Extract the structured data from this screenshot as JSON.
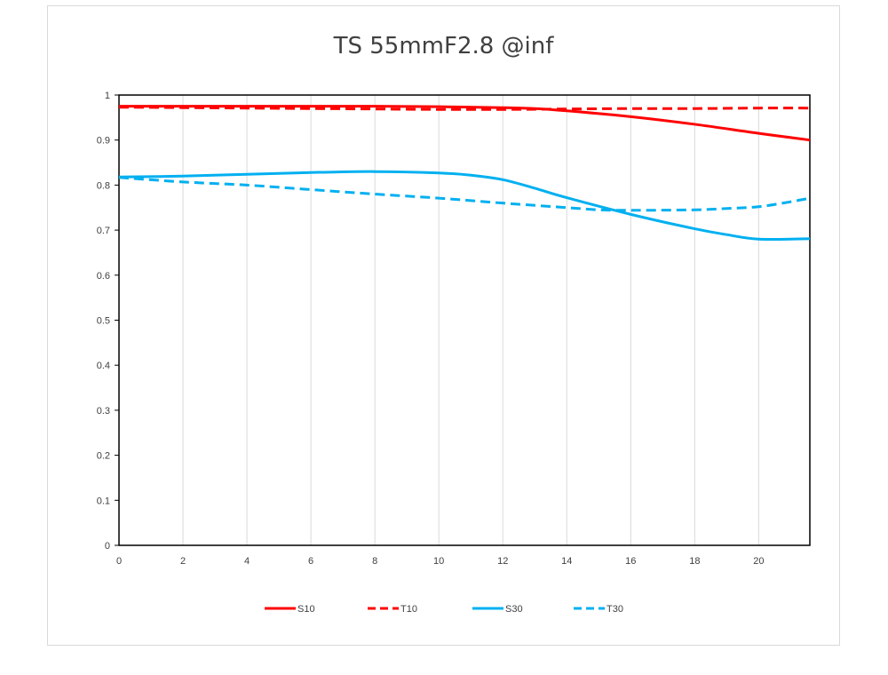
{
  "chart_data": {
    "type": "line",
    "title": "TS 55mmF2.8 @inf",
    "xlabel": "",
    "ylabel": "",
    "xlim": [
      0,
      21.6
    ],
    "ylim": [
      0,
      1
    ],
    "x_ticks": [
      "0",
      "2",
      "4",
      "6",
      "8",
      "10",
      "12",
      "14",
      "16",
      "18",
      "20"
    ],
    "y_ticks": [
      "0",
      "0.1",
      "0.2",
      "0.3",
      "0.4",
      "0.5",
      "0.6",
      "0.7",
      "0.8",
      "0.9",
      "1"
    ],
    "grid": "vertical",
    "legend_position": "bottom",
    "series": [
      {
        "name": "S10",
        "color": "#ff0000",
        "style": "solid",
        "x": [
          0,
          2,
          4,
          6,
          8,
          10,
          12,
          13,
          14,
          16,
          18,
          20,
          21.6
        ],
        "y": [
          0.975,
          0.975,
          0.975,
          0.975,
          0.975,
          0.974,
          0.972,
          0.97,
          0.965,
          0.952,
          0.935,
          0.915,
          0.9
        ]
      },
      {
        "name": "T10",
        "color": "#ff0000",
        "style": "dashed",
        "x": [
          0,
          2,
          4,
          6,
          8,
          10,
          12,
          14,
          16,
          18,
          20,
          21.6
        ],
        "y": [
          0.973,
          0.972,
          0.971,
          0.97,
          0.969,
          0.968,
          0.968,
          0.969,
          0.97,
          0.97,
          0.971,
          0.971
        ]
      },
      {
        "name": "S30",
        "color": "#00b0f0",
        "style": "solid",
        "x": [
          0,
          2,
          4,
          6,
          8,
          10,
          11,
          12,
          13,
          14,
          16,
          18,
          19,
          20,
          21.6
        ],
        "y": [
          0.818,
          0.82,
          0.824,
          0.828,
          0.83,
          0.827,
          0.822,
          0.812,
          0.793,
          0.772,
          0.735,
          0.703,
          0.69,
          0.68,
          0.681
        ]
      },
      {
        "name": "T30",
        "color": "#00b0f0",
        "style": "dashed",
        "x": [
          0,
          2,
          4,
          6,
          8,
          10,
          12,
          14,
          15,
          16,
          18,
          19,
          20,
          21,
          21.6
        ],
        "y": [
          0.817,
          0.807,
          0.8,
          0.79,
          0.78,
          0.771,
          0.76,
          0.75,
          0.745,
          0.744,
          0.745,
          0.748,
          0.752,
          0.763,
          0.771
        ]
      }
    ]
  }
}
